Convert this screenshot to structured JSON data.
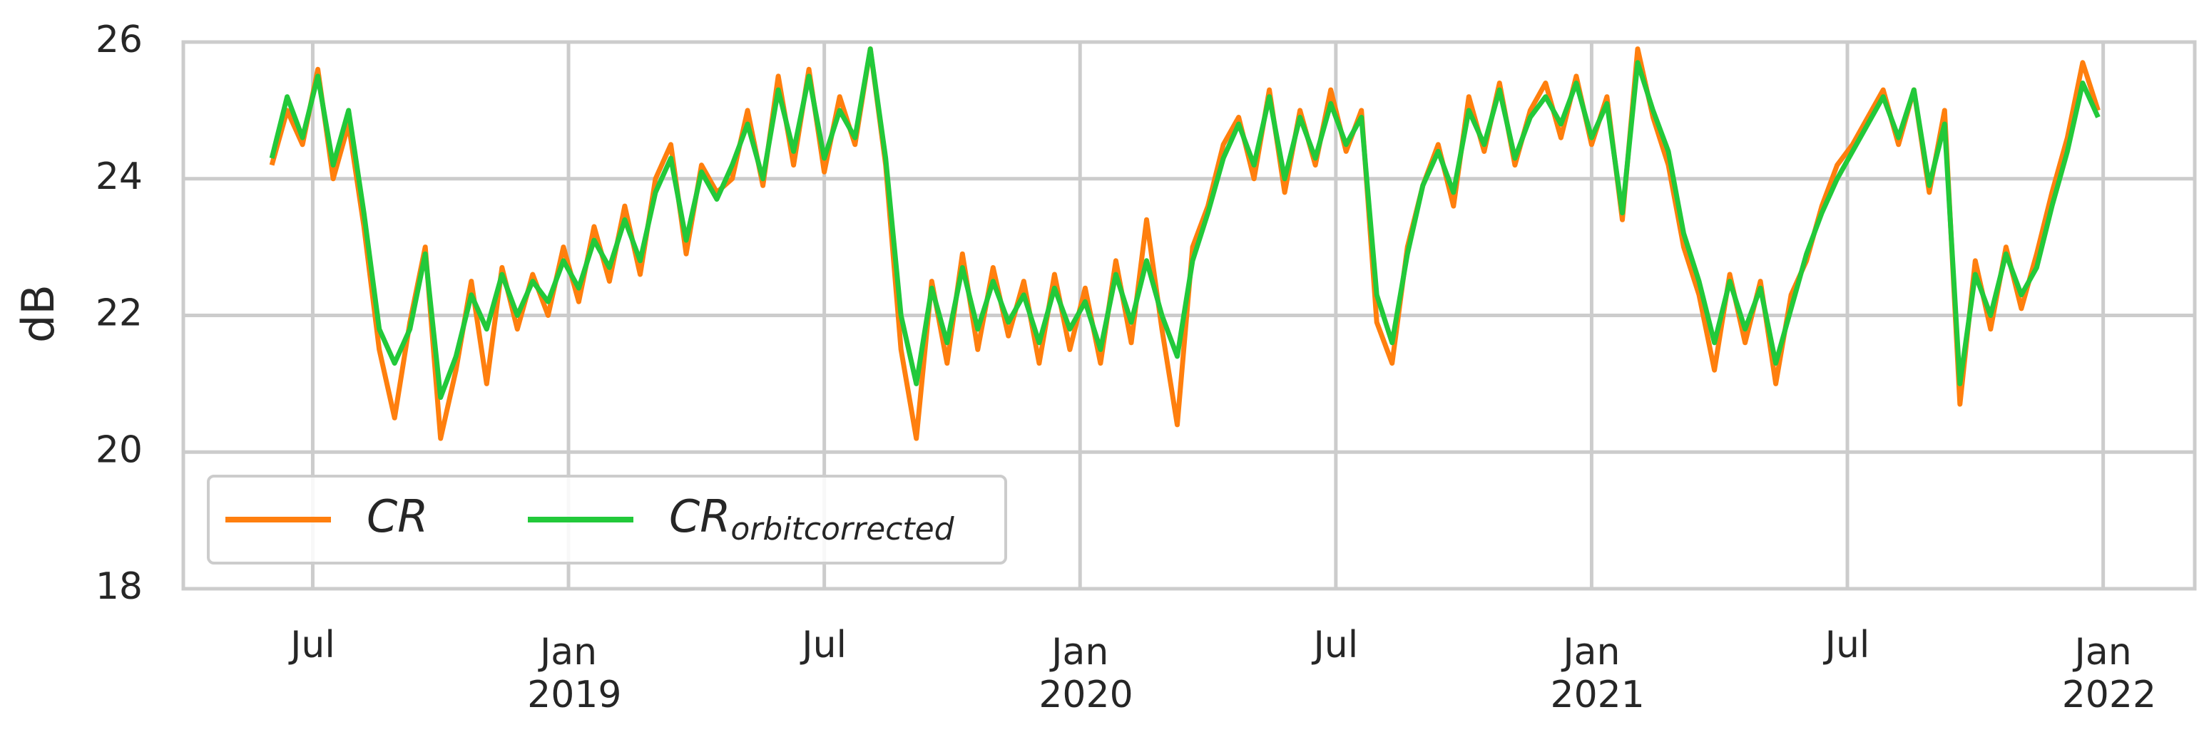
{
  "chart_data": {
    "type": "line",
    "ylabel": "dB",
    "x": [
      2018.42,
      2018.45,
      2018.48,
      2018.51,
      2018.54,
      2018.57,
      2018.6,
      2018.63,
      2018.66,
      2018.69,
      2018.72,
      2018.75,
      2018.78,
      2018.81,
      2018.84,
      2018.87,
      2018.9,
      2018.93,
      2018.96,
      2018.99,
      2019.02,
      2019.05,
      2019.08,
      2019.11,
      2019.14,
      2019.17,
      2019.2,
      2019.23,
      2019.26,
      2019.29,
      2019.32,
      2019.35,
      2019.38,
      2019.41,
      2019.44,
      2019.47,
      2019.5,
      2019.53,
      2019.56,
      2019.59,
      2019.62,
      2019.65,
      2019.68,
      2019.71,
      2019.74,
      2019.77,
      2019.8,
      2019.83,
      2019.86,
      2019.89,
      2019.92,
      2019.95,
      2019.98,
      2020.01,
      2020.04,
      2020.07,
      2020.1,
      2020.13,
      2020.16,
      2020.19,
      2020.22,
      2020.25,
      2020.28,
      2020.31,
      2020.34,
      2020.37,
      2020.4,
      2020.43,
      2020.46,
      2020.49,
      2020.52,
      2020.55,
      2020.58,
      2020.61,
      2020.64,
      2020.67,
      2020.7,
      2020.73,
      2020.76,
      2020.79,
      2020.82,
      2020.85,
      2020.88,
      2020.91,
      2020.94,
      2020.97,
      2021.0,
      2021.03,
      2021.06,
      2021.09,
      2021.12,
      2021.15,
      2021.18,
      2021.21,
      2021.24,
      2021.27,
      2021.3,
      2021.33,
      2021.36,
      2021.39,
      2021.42,
      2021.45,
      2021.48,
      2021.51,
      2021.54,
      2021.57,
      2021.6,
      2021.63,
      2021.66,
      2021.69,
      2021.72,
      2021.75,
      2021.78,
      2021.81,
      2021.84,
      2021.87,
      2021.9,
      2021.93,
      2021.96,
      2021.99
    ],
    "series": [
      {
        "name": "CR",
        "color": "#ff7f0e",
        "values": [
          24.2,
          25.0,
          24.5,
          25.6,
          24.0,
          24.8,
          23.3,
          21.5,
          20.5,
          21.9,
          23.0,
          20.2,
          21.2,
          22.5,
          21.0,
          22.7,
          21.8,
          22.6,
          22.0,
          23.0,
          22.2,
          23.3,
          22.5,
          23.6,
          22.6,
          24.0,
          24.5,
          22.9,
          24.2,
          23.8,
          24.0,
          25.0,
          23.9,
          25.5,
          24.2,
          25.6,
          24.1,
          25.2,
          24.5,
          25.9,
          24.2,
          21.5,
          20.2,
          22.5,
          21.3,
          22.9,
          21.5,
          22.7,
          21.7,
          22.5,
          21.3,
          22.6,
          21.5,
          22.4,
          21.3,
          22.8,
          21.6,
          23.4,
          21.8,
          20.4,
          23.0,
          23.6,
          24.5,
          24.9,
          24.0,
          25.3,
          23.8,
          25.0,
          24.2,
          25.3,
          24.4,
          25.0,
          21.9,
          21.3,
          23.0,
          23.9,
          24.5,
          23.6,
          25.2,
          24.4,
          25.4,
          24.2,
          25.0,
          25.4,
          24.6,
          25.5,
          24.5,
          25.2,
          23.4,
          25.9,
          24.9,
          24.2,
          23.0,
          22.3,
          21.2,
          22.6,
          21.6,
          22.5,
          21.0,
          22.3,
          22.8,
          23.6,
          24.2,
          24.5,
          24.9,
          25.3,
          24.5,
          25.3,
          23.8,
          25.0,
          20.7,
          22.8,
          21.8,
          23.0,
          22.1,
          22.9,
          23.8,
          24.6,
          25.7,
          25.0
        ]
      },
      {
        "name": "CR_orbitcorrected",
        "color": "#22c93a",
        "values": [
          24.3,
          25.2,
          24.6,
          25.5,
          24.2,
          25.0,
          23.5,
          21.8,
          21.3,
          21.8,
          22.9,
          20.8,
          21.4,
          22.3,
          21.8,
          22.6,
          22.0,
          22.5,
          22.2,
          22.8,
          22.4,
          23.1,
          22.7,
          23.4,
          22.8,
          23.8,
          24.3,
          23.1,
          24.1,
          23.7,
          24.2,
          24.8,
          24.0,
          25.3,
          24.4,
          25.5,
          24.3,
          25.0,
          24.6,
          25.9,
          24.3,
          22.0,
          21.0,
          22.4,
          21.6,
          22.7,
          21.8,
          22.5,
          21.9,
          22.3,
          21.6,
          22.4,
          21.8,
          22.2,
          21.5,
          22.6,
          21.9,
          22.8,
          22.0,
          21.4,
          22.8,
          23.5,
          24.3,
          24.8,
          24.2,
          25.2,
          24.0,
          24.9,
          24.3,
          25.1,
          24.5,
          24.9,
          22.3,
          21.6,
          22.9,
          23.9,
          24.4,
          23.8,
          25.0,
          24.5,
          25.3,
          24.3,
          24.9,
          25.2,
          24.8,
          25.4,
          24.6,
          25.1,
          23.5,
          25.7,
          25.0,
          24.4,
          23.2,
          22.5,
          21.6,
          22.5,
          21.8,
          22.4,
          21.3,
          22.1,
          22.9,
          23.5,
          24.0,
          24.4,
          24.8,
          25.2,
          24.6,
          25.3,
          23.9,
          24.8,
          21.0,
          22.6,
          22.0,
          22.9,
          22.3,
          22.7,
          23.6,
          24.4,
          25.4,
          24.9
        ]
      }
    ],
    "xlim": [
      2018.247,
      2022.179
    ],
    "xticks": [
      {
        "value": 2018.5,
        "label": "Jul"
      },
      {
        "value": 2019.0,
        "label": "Jan 2019"
      },
      {
        "value": 2019.5,
        "label": "Jul"
      },
      {
        "value": 2020.0,
        "label": "Jan 2020"
      },
      {
        "value": 2020.5,
        "label": "Jul"
      },
      {
        "value": 2021.0,
        "label": "Jan 2021"
      },
      {
        "value": 2021.5,
        "label": "Jul"
      },
      {
        "value": 2022.0,
        "label": "Jan 2022"
      }
    ],
    "ylim": [
      18,
      26
    ],
    "yticks": [
      18,
      20,
      22,
      24,
      26
    ],
    "grid": true,
    "legend": "lower left"
  }
}
